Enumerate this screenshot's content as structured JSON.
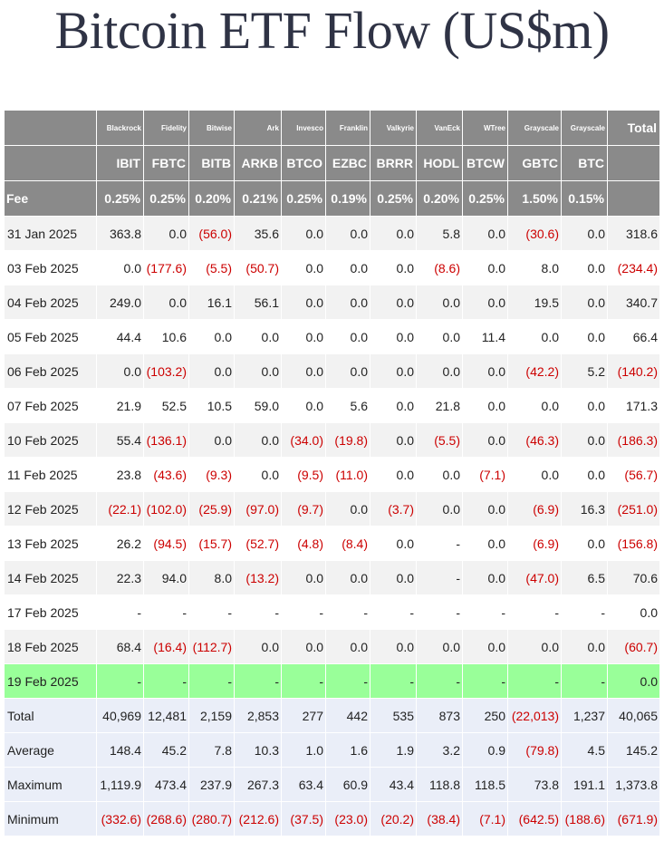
{
  "title": "Bitcoin ETF Flow (US$m)",
  "header": {
    "issuers": [
      "Blackrock",
      "Fidelity",
      "Bitwise",
      "Ark",
      "Invesco",
      "Franklin",
      "Valkyrie",
      "VanEck",
      "WTree",
      "Grayscale",
      "Grayscale"
    ],
    "total_label": "Total",
    "tickers": [
      "IBIT",
      "FBTC",
      "BITB",
      "ARKB",
      "BTCO",
      "EZBC",
      "BRRR",
      "HODL",
      "BTCW",
      "GBTC",
      "BTC"
    ],
    "fee_label": "Fee",
    "fees": [
      "0.25%",
      "0.25%",
      "0.20%",
      "0.21%",
      "0.25%",
      "0.19%",
      "0.25%",
      "0.20%",
      "0.25%",
      "1.50%",
      "0.15%"
    ]
  },
  "rows": [
    {
      "date": "31 Jan 2025",
      "values": [
        "363.8",
        "0.0",
        "(56.0)",
        "35.6",
        "0.0",
        "0.0",
        "0.0",
        "5.8",
        "0.0",
        "(30.6)",
        "0.0"
      ],
      "total": "318.6"
    },
    {
      "date": "03 Feb 2025",
      "values": [
        "0.0",
        "(177.6)",
        "(5.5)",
        "(50.7)",
        "0.0",
        "0.0",
        "0.0",
        "(8.6)",
        "0.0",
        "8.0",
        "0.0"
      ],
      "total": "(234.4)"
    },
    {
      "date": "04 Feb 2025",
      "values": [
        "249.0",
        "0.0",
        "16.1",
        "56.1",
        "0.0",
        "0.0",
        "0.0",
        "0.0",
        "0.0",
        "19.5",
        "0.0"
      ],
      "total": "340.7"
    },
    {
      "date": "05 Feb 2025",
      "values": [
        "44.4",
        "10.6",
        "0.0",
        "0.0",
        "0.0",
        "0.0",
        "0.0",
        "0.0",
        "11.4",
        "0.0",
        "0.0"
      ],
      "total": "66.4"
    },
    {
      "date": "06 Feb 2025",
      "values": [
        "0.0",
        "(103.2)",
        "0.0",
        "0.0",
        "0.0",
        "0.0",
        "0.0",
        "0.0",
        "0.0",
        "(42.2)",
        "5.2"
      ],
      "total": "(140.2)"
    },
    {
      "date": "07 Feb 2025",
      "values": [
        "21.9",
        "52.5",
        "10.5",
        "59.0",
        "0.0",
        "5.6",
        "0.0",
        "21.8",
        "0.0",
        "0.0",
        "0.0"
      ],
      "total": "171.3"
    },
    {
      "date": "10 Feb 2025",
      "values": [
        "55.4",
        "(136.1)",
        "0.0",
        "0.0",
        "(34.0)",
        "(19.8)",
        "0.0",
        "(5.5)",
        "0.0",
        "(46.3)",
        "0.0"
      ],
      "total": "(186.3)"
    },
    {
      "date": "11 Feb 2025",
      "values": [
        "23.8",
        "(43.6)",
        "(9.3)",
        "0.0",
        "(9.5)",
        "(11.0)",
        "0.0",
        "0.0",
        "(7.1)",
        "0.0",
        "0.0"
      ],
      "total": "(56.7)"
    },
    {
      "date": "12 Feb 2025",
      "values": [
        "(22.1)",
        "(102.0)",
        "(25.9)",
        "(97.0)",
        "(9.7)",
        "0.0",
        "(3.7)",
        "0.0",
        "0.0",
        "(6.9)",
        "16.3"
      ],
      "total": "(251.0)"
    },
    {
      "date": "13 Feb 2025",
      "values": [
        "26.2",
        "(94.5)",
        "(15.7)",
        "(52.7)",
        "(4.8)",
        "(8.4)",
        "0.0",
        "-",
        "0.0",
        "(6.9)",
        "0.0"
      ],
      "total": "(156.8)"
    },
    {
      "date": "14 Feb 2025",
      "values": [
        "22.3",
        "94.0",
        "8.0",
        "(13.2)",
        "0.0",
        "0.0",
        "0.0",
        "-",
        "0.0",
        "(47.0)",
        "6.5"
      ],
      "total": "70.6"
    },
    {
      "date": "17 Feb 2025",
      "values": [
        "-",
        "-",
        "-",
        "-",
        "-",
        "-",
        "-",
        "-",
        "-",
        "-",
        "-"
      ],
      "total": "0.0"
    },
    {
      "date": "18 Feb 2025",
      "values": [
        "68.4",
        "(16.4)",
        "(112.7)",
        "0.0",
        "0.0",
        "0.0",
        "0.0",
        "0.0",
        "0.0",
        "0.0",
        "0.0"
      ],
      "total": "(60.7)"
    },
    {
      "date": "19 Feb 2025",
      "values": [
        "-",
        "-",
        "-",
        "-",
        "-",
        "-",
        "-",
        "-",
        "-",
        "-",
        "-"
      ],
      "total": "0.0",
      "highlight": true
    }
  ],
  "summary": [
    {
      "label": "Total",
      "values": [
        "40,969",
        "12,481",
        "2,159",
        "2,853",
        "277",
        "442",
        "535",
        "873",
        "250",
        "(22,013)",
        "1,237"
      ],
      "total": "40,065"
    },
    {
      "label": "Average",
      "values": [
        "148.4",
        "45.2",
        "7.8",
        "10.3",
        "1.0",
        "1.6",
        "1.9",
        "3.2",
        "0.9",
        "(79.8)",
        "4.5"
      ],
      "total": "145.2"
    },
    {
      "label": "Maximum",
      "values": [
        "1,119.9",
        "473.4",
        "237.9",
        "267.3",
        "63.4",
        "60.9",
        "43.4",
        "118.8",
        "118.5",
        "73.8",
        "191.1"
      ],
      "total": "1,373.8"
    },
    {
      "label": "Minimum",
      "values": [
        "(332.6)",
        "(268.6)",
        "(280.7)",
        "(212.6)",
        "(37.5)",
        "(23.0)",
        "(20.2)",
        "(38.4)",
        "(7.1)",
        "(642.5)",
        "(188.6)"
      ],
      "total": "(671.9)"
    }
  ],
  "colors": {
    "header_bg": "#8a8a8a",
    "row_alt_bg": "#f2f2f2",
    "highlight_bg": "#99ff99",
    "summary_bg": "#eaeef8",
    "negative": "#cc0000",
    "title": "#2f3345"
  }
}
